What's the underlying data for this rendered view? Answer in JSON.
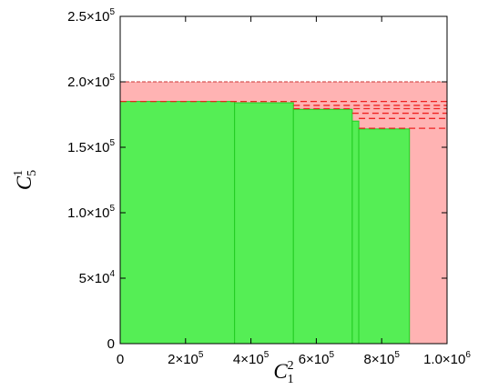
{
  "chart_data": {
    "type": "area",
    "xlabel": "C",
    "xlabel_sup": "2",
    "xlabel_sub": "1",
    "ylabel": "C",
    "ylabel_sup": "1",
    "ylabel_sub": "5",
    "xlim": [
      0,
      1000000
    ],
    "ylim": [
      0,
      250000
    ],
    "x_ticks": [
      {
        "value": 0,
        "mant": "0",
        "exp": ""
      },
      {
        "value": 200000,
        "mant": "2×10",
        "exp": "5"
      },
      {
        "value": 400000,
        "mant": "4×10",
        "exp": "5"
      },
      {
        "value": 600000,
        "mant": "6×10",
        "exp": "5"
      },
      {
        "value": 800000,
        "mant": "8×10",
        "exp": "5"
      },
      {
        "value": 1000000,
        "mant": "1.0×10",
        "exp": "6"
      }
    ],
    "y_ticks": [
      {
        "value": 0,
        "mant": "0",
        "exp": ""
      },
      {
        "value": 50000,
        "mant": "5×10",
        "exp": "4"
      },
      {
        "value": 100000,
        "mant": "1.0×10",
        "exp": "5"
      },
      {
        "value": 150000,
        "mant": "1.5×10",
        "exp": "5"
      },
      {
        "value": 200000,
        "mant": "2.0×10",
        "exp": "5"
      },
      {
        "value": 250000,
        "mant": "2.5×10",
        "exp": "5"
      }
    ],
    "red_region": {
      "color": "#ffb3b3",
      "x": [
        0,
        1000000
      ],
      "y": [
        0,
        200000
      ]
    },
    "green_region": {
      "color": "#55ee55",
      "edge_color": "#22cc22",
      "steps": [
        {
          "x0": 0,
          "x1": 350000,
          "y": 185000
        },
        {
          "x0": 350000,
          "x1": 530000,
          "y": 184000
        },
        {
          "x0": 530000,
          "x1": 710000,
          "y": 179000
        },
        {
          "x0": 710000,
          "x1": 730000,
          "y": 170000
        },
        {
          "x0": 730000,
          "x1": 885000,
          "y": 164000
        }
      ]
    },
    "dashed_lines": [
      {
        "x0": 0,
        "x1": 1000000,
        "y": 185000
      },
      {
        "x0": 530000,
        "x1": 1000000,
        "y": 182000
      },
      {
        "x0": 530000,
        "x1": 1000000,
        "y": 179500
      },
      {
        "x0": 710000,
        "x1": 1000000,
        "y": 176000
      },
      {
        "x0": 730000,
        "x1": 1000000,
        "y": 172000
      },
      {
        "x0": 730000,
        "x1": 1000000,
        "y": 164500
      }
    ],
    "dashed_color": "#ee2222",
    "grid": false,
    "legend": "none"
  }
}
